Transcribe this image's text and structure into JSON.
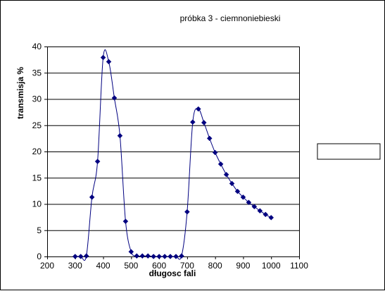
{
  "chart_data": {
    "type": "scatter",
    "title": "próbka 3 - ciemnoniebieski",
    "xlabel": "długosc fali",
    "ylabel": "transmisja %",
    "xlim": [
      200,
      1100
    ],
    "ylim": [
      0,
      40
    ],
    "x_ticks": [
      200,
      300,
      400,
      500,
      600,
      700,
      800,
      900,
      1000,
      1100
    ],
    "y_ticks": [
      0,
      5,
      10,
      15,
      20,
      25,
      30,
      35,
      40
    ],
    "x_tick_labels": [
      "200",
      "300",
      "400",
      "500",
      "600",
      "700",
      "800",
      "900",
      "1000",
      "1100"
    ],
    "y_tick_labels": [
      "0",
      "5",
      "10",
      "15",
      "20",
      "25",
      "30",
      "35",
      "40"
    ],
    "grid": "horizontal",
    "legend": "right",
    "smooth_line": true,
    "series": [
      {
        "color": "#000080",
        "x": [
          300,
          320,
          340,
          360,
          380,
          400,
          420,
          440,
          460,
          480,
          500,
          520,
          540,
          560,
          580,
          600,
          620,
          640,
          660,
          680,
          700,
          720,
          740,
          760,
          780,
          800,
          820,
          840,
          860,
          880,
          900,
          920,
          940,
          960,
          980,
          1000
        ],
        "y": [
          0,
          0,
          0.1,
          11.3,
          18.1,
          37.9,
          37.1,
          30.2,
          23.0,
          6.7,
          0.9,
          0.1,
          0.1,
          0.1,
          0,
          0,
          0,
          0,
          0,
          0.1,
          8.5,
          25.6,
          28.1,
          25.5,
          22.5,
          19.8,
          17.6,
          15.6,
          13.9,
          12.4,
          11.3,
          10.3,
          9.5,
          8.7,
          8.0,
          7.4
        ]
      }
    ]
  }
}
